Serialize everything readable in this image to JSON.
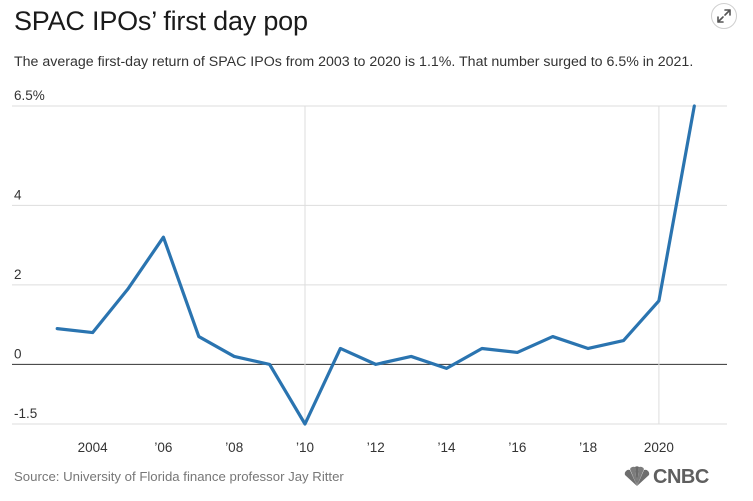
{
  "header": {
    "title": "SPAC IPOs’ first day pop",
    "subtitle": "The average first-day return of SPAC IPOs from 2003 to 2020 is 1.1%. That number surged to 6.5% in 2021."
  },
  "footer": {
    "source": "Source: University of Florida finance professor Jay Ritter",
    "logo_text": "CNBC"
  },
  "icons": {
    "expand": "expand-icon",
    "logo": "peacock-icon"
  },
  "chart_data": {
    "type": "line",
    "x": [
      2003,
      2004,
      2005,
      2006,
      2007,
      2008,
      2009,
      2010,
      2011,
      2012,
      2013,
      2014,
      2015,
      2016,
      2017,
      2018,
      2019,
      2020,
      2021
    ],
    "series": [
      {
        "values": [
          0.9,
          0.8,
          1.9,
          3.2,
          0.7,
          0.2,
          0.0,
          -1.5,
          0.4,
          0.0,
          0.2,
          -0.1,
          0.4,
          0.3,
          0.7,
          0.4,
          0.6,
          1.6,
          6.5
        ],
        "color": "#2a74b0"
      }
    ],
    "xlim": [
      2002.4,
      2021.5
    ],
    "ylim": [
      -1.5,
      6.5
    ],
    "y_ticks": [
      -1.5,
      0,
      2,
      4,
      6.5
    ],
    "y_tick_labels": [
      "-1.5",
      "0",
      "2",
      "4",
      "6.5%"
    ],
    "x_ticks": [
      2004,
      2006,
      2008,
      2010,
      2012,
      2014,
      2016,
      2018,
      2020
    ],
    "x_tick_labels": [
      "2004",
      "’06",
      "’08",
      "’10",
      "’12",
      "’14",
      "’16",
      "’18",
      "2020"
    ],
    "highlight_gridlines_x": [
      2010,
      2020
    ],
    "zero_line": true,
    "grid": "horizontal"
  }
}
